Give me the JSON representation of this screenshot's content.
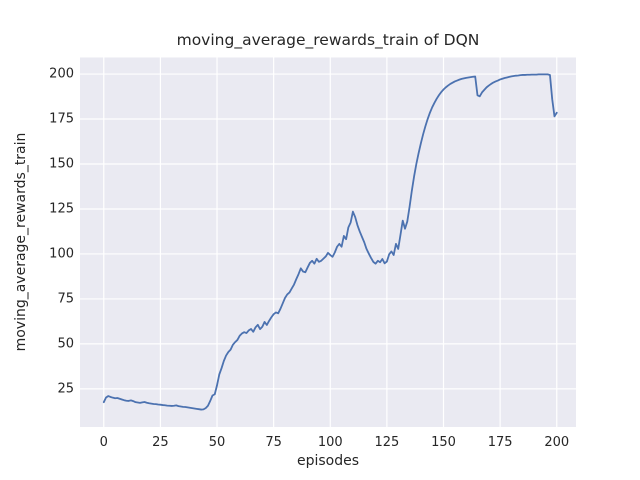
{
  "figure_title": "moving_average_rewards_train of DQN",
  "chart_data": {
    "type": "line",
    "title": "moving_average_rewards_train of DQN",
    "xlabel": "episodes",
    "ylabel": "moving_average_rewards_train",
    "legend": "none",
    "grid": true,
    "style": "seaborn-darkgrid",
    "xlim": [
      -10.5,
      208.5
    ],
    "ylim": [
      3.8,
      209.2
    ],
    "xticks": [
      0,
      25,
      50,
      75,
      100,
      125,
      150,
      175,
      200
    ],
    "yticks": [
      25,
      50,
      75,
      100,
      125,
      150,
      175,
      200
    ],
    "colors": {
      "line": "#4c72b0",
      "panel_background": "#eaeaf2",
      "grid": "#ffffff",
      "text": "#262626",
      "figure_background": "#ffffff"
    },
    "series": [
      {
        "name": "moving_average_rewards_train",
        "x_start": 0,
        "x_step": 1,
        "values": [
          17.6,
          20.2,
          21.0,
          20.5,
          20.1,
          19.8,
          19.9,
          19.5,
          19.1,
          18.7,
          18.4,
          18.3,
          18.6,
          18.2,
          17.6,
          17.4,
          17.2,
          17.5,
          17.7,
          17.3,
          17.0,
          16.8,
          16.6,
          16.5,
          16.3,
          16.2,
          16.0,
          15.9,
          15.7,
          15.6,
          15.5,
          15.6,
          15.8,
          15.4,
          15.2,
          15.0,
          14.9,
          14.7,
          14.5,
          14.3,
          14.1,
          13.9,
          13.7,
          13.5,
          13.6,
          14.3,
          15.6,
          18.3,
          21.3,
          22.0,
          27.0,
          33.0,
          36.5,
          40.5,
          43.5,
          45.5,
          46.8,
          49.5,
          51.0,
          52.2,
          54.5,
          55.8,
          56.5,
          56.0,
          57.5,
          58.3,
          56.7,
          59.2,
          60.6,
          58.2,
          59.5,
          62.2,
          60.5,
          62.8,
          64.8,
          66.5,
          67.5,
          67.0,
          69.5,
          72.5,
          75.5,
          77.5,
          78.6,
          80.8,
          83.0,
          86.0,
          88.8,
          92.0,
          90.2,
          89.8,
          92.5,
          95.0,
          96.2,
          94.6,
          97.3,
          95.6,
          96.2,
          97.4,
          98.6,
          100.6,
          99.4,
          98.4,
          100.8,
          104.0,
          105.6,
          104.0,
          110.0,
          108.2,
          114.8,
          117.5,
          123.5,
          120.5,
          116.0,
          112.5,
          109.5,
          106.5,
          102.8,
          100.2,
          97.8,
          95.6,
          94.6,
          96.2,
          95.4,
          97.2,
          94.8,
          95.8,
          99.8,
          101.4,
          99.4,
          105.6,
          102.8,
          110.6,
          118.5,
          114.0,
          118.0,
          126.0,
          135.0,
          143.0,
          150.0,
          156.0,
          161.5,
          166.5,
          171.0,
          175.0,
          178.5,
          181.5,
          184.0,
          186.3,
          188.3,
          190.0,
          191.4,
          192.6,
          193.6,
          194.5,
          195.2,
          195.9,
          196.4,
          196.9,
          197.3,
          197.6,
          197.9,
          198.1,
          198.3,
          198.5,
          198.6,
          188.2,
          187.6,
          189.8,
          191.2,
          192.6,
          193.6,
          194.5,
          195.3,
          195.9,
          196.4,
          197.0,
          197.4,
          197.8,
          198.1,
          198.4,
          198.7,
          198.9,
          199.1,
          199.2,
          199.4,
          199.5,
          199.5,
          199.6,
          199.6,
          199.7,
          199.7,
          199.7,
          199.8,
          199.8,
          199.8,
          199.8,
          199.8,
          199.5,
          186.0,
          176.5,
          178.5
        ]
      }
    ]
  }
}
